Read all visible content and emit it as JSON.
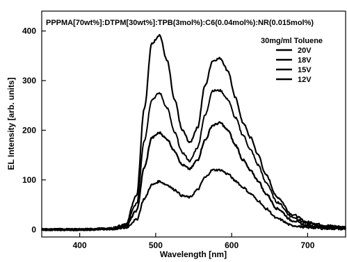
{
  "chart_data": {
    "type": "line",
    "title": "PPPMA[70wt%]:DTPM[30wt%]:TPB(3mol%):C6(0.04mol%):NR(0.015mol%)",
    "xlabel": "Wavelength  [nm]",
    "ylabel": "EL Intensity  [arb. units]",
    "xlim": [
      350,
      750
    ],
    "ylim": [
      -15,
      440
    ],
    "xticks": [
      400,
      500,
      600,
      700
    ],
    "yticks": [
      0,
      100,
      200,
      300,
      400
    ],
    "legend_title": "30mg/ml Toluene",
    "legend_position": "top-right",
    "grid": false,
    "x": [
      350,
      400,
      440,
      460,
      475,
      485,
      495,
      505,
      515,
      525,
      535,
      545,
      555,
      565,
      575,
      585,
      595,
      605,
      615,
      625,
      635,
      645,
      660,
      680,
      700,
      725,
      750
    ],
    "series": [
      {
        "name": "20V",
        "values": [
          0,
          0,
          2,
          10,
          70,
          245,
          375,
          392,
          340,
          260,
          200,
          175,
          205,
          290,
          340,
          345,
          320,
          265,
          215,
          185,
          150,
          110,
          65,
          30,
          15,
          8,
          5
        ]
      },
      {
        "name": "18V",
        "values": [
          0,
          0,
          2,
          8,
          52,
          180,
          262,
          275,
          245,
          195,
          155,
          138,
          165,
          230,
          280,
          280,
          262,
          225,
          190,
          160,
          130,
          95,
          55,
          25,
          12,
          6,
          4
        ]
      },
      {
        "name": "15V",
        "values": [
          0,
          0,
          1,
          5,
          38,
          125,
          185,
          195,
          182,
          158,
          130,
          122,
          140,
          180,
          210,
          215,
          200,
          170,
          140,
          118,
          98,
          72,
          42,
          18,
          8,
          4,
          3
        ]
      },
      {
        "name": "12V",
        "values": [
          0,
          0,
          1,
          3,
          20,
          62,
          90,
          97,
          90,
          80,
          68,
          65,
          80,
          105,
          120,
          120,
          112,
          98,
          85,
          72,
          58,
          42,
          22,
          8,
          4,
          2,
          1
        ]
      }
    ]
  }
}
